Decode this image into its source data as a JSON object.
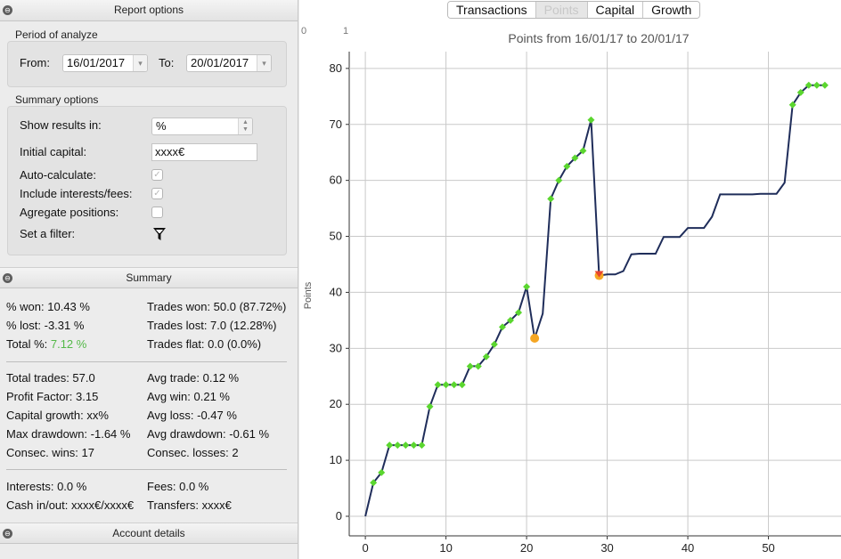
{
  "tabs": [
    {
      "label": "Transactions",
      "active": false
    },
    {
      "label": "Points",
      "active": true
    },
    {
      "label": "Capital",
      "active": false
    },
    {
      "label": "Growth",
      "active": false
    }
  ],
  "report_options": {
    "header": "Report options",
    "period": {
      "title": "Period of analyze",
      "from_label": "From:",
      "from_value": "16/01/2017",
      "to_label": "To:",
      "to_value": "20/01/2017"
    },
    "summary_options": {
      "title": "Summary options",
      "show_results_label": "Show results in:",
      "show_results_value": "%",
      "initial_capital_label": "Initial capital:",
      "initial_capital_value": "xxxx€",
      "auto_calculate_label": "Auto-calculate:",
      "auto_calculate_checked": true,
      "include_interests_label": "Include interests/fees:",
      "include_interests_checked": true,
      "aggregate_label": "Agregate positions:",
      "aggregate_checked": false,
      "filter_label": "Set a filter:",
      "filter_icon": "funnel-icon"
    }
  },
  "summary": {
    "header": "Summary",
    "won_pct": "% won: 10.43 %",
    "lost_pct": "% lost: -3.31 %",
    "total_label": "Total %: ",
    "total_value": "7.12 %",
    "trades_won": "Trades won: 50.0 (87.72%)",
    "trades_lost": "Trades lost: 7.0 (12.28%)",
    "trades_flat": "Trades flat: 0.0 (0.0%)",
    "total_trades": "Total trades: 57.0",
    "profit_factor": "Profit Factor: 3.15",
    "capital_growth": "Capital growth: xx%",
    "max_drawdown": "Max drawdown: -1.64 %",
    "consec_wins": "Consec. wins: 17",
    "avg_trade": "Avg trade: 0.12 %",
    "avg_win": "Avg win: 0.21 %",
    "avg_loss": "Avg loss: -0.47 %",
    "avg_drawdown": "Avg drawdown: -0.61 %",
    "consec_losses": "Consec. losses: 2",
    "interests": "Interests: 0.0 %",
    "fees": "Fees: 0.0 %",
    "cash_in_out": "Cash in/out: xxxx€/xxxx€",
    "transfers": "Transfers: xxxx€",
    "total_color": "#54b948"
  },
  "account_details": {
    "header": "Account details"
  },
  "chart_data": {
    "type": "line",
    "title": "Points from 16/01/17 to 20/01/17",
    "ylabel": "Points",
    "xlabel": "",
    "xlim": [
      -2,
      59
    ],
    "ylim": [
      -3.5,
      83
    ],
    "xticks": [
      0,
      10,
      20,
      30,
      40,
      50
    ],
    "yticks": [
      0,
      10,
      20,
      30,
      40,
      50,
      60,
      70,
      80
    ],
    "top_ruler_labels": [
      "0",
      "1"
    ],
    "grid": true,
    "line_color": "#1f2d5a",
    "win_marker_color": "#5bd62f",
    "loss_marker_color": "#f5a623",
    "loss_triangle_color": "#e8452c",
    "series": [
      {
        "x": [
          0,
          1,
          2,
          3,
          4,
          5,
          6,
          7,
          8,
          9,
          10,
          11,
          12,
          13,
          14,
          15,
          16,
          17,
          18,
          19,
          20,
          21,
          22,
          23,
          24,
          25,
          26,
          27,
          28,
          29,
          30,
          31,
          32,
          33,
          34,
          35,
          36,
          37,
          38,
          39,
          40,
          41,
          42,
          43,
          44,
          45,
          46,
          47,
          48,
          49,
          50,
          51,
          52,
          53,
          54,
          55,
          56,
          57
        ],
        "y": [
          0,
          6,
          7.8,
          12.7,
          12.7,
          12.7,
          12.7,
          12.7,
          19.6,
          23.5,
          23.5,
          23.5,
          23.5,
          26.8,
          26.8,
          28.5,
          30.7,
          33.8,
          35,
          36.4,
          41,
          31.8,
          36.2,
          56.7,
          60,
          62.5,
          64,
          65.3,
          70.8,
          43,
          43.2,
          43.2,
          43.8,
          46.8,
          46.9,
          46.9,
          46.9,
          49.9,
          49.9,
          49.9,
          51.5,
          51.5,
          51.5,
          53.5,
          57.5,
          57.5,
          57.5,
          57.5,
          57.5,
          57.6,
          57.6,
          57.6,
          59.6,
          73.5,
          75.7,
          77,
          77,
          77
        ],
        "marker": [
          "none",
          "win",
          "win",
          "win",
          "win",
          "win",
          "win",
          "win",
          "win",
          "win",
          "win",
          "win",
          "win",
          "win",
          "win",
          "win",
          "win",
          "win",
          "win",
          "win",
          "win",
          "loss",
          "none",
          "win",
          "win",
          "win",
          "win",
          "win",
          "win",
          "loss-triangle",
          "none",
          "none",
          "none",
          "none",
          "none",
          "none",
          "none",
          "none",
          "none",
          "none",
          "none",
          "none",
          "none",
          "none",
          "none",
          "none",
          "none",
          "none",
          "none",
          "none",
          "none",
          "none",
          "none",
          "win",
          "win",
          "win",
          "win",
          "win"
        ]
      }
    ]
  }
}
